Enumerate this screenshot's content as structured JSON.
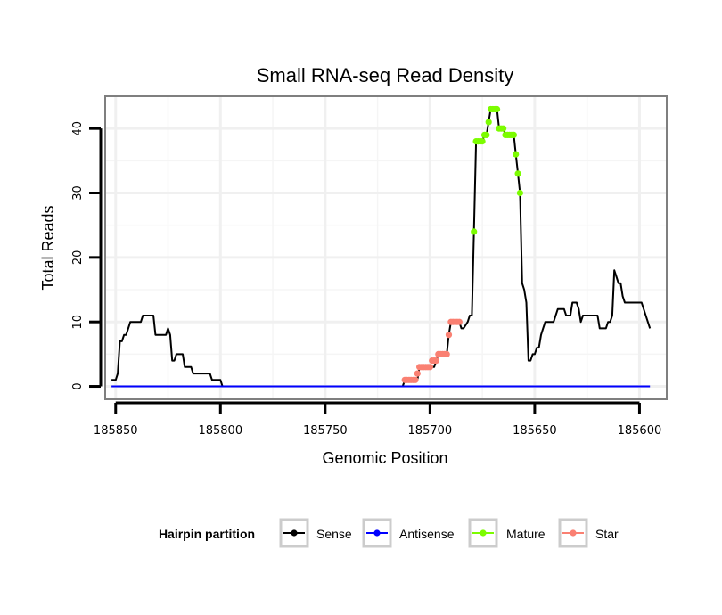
{
  "chart_data": {
    "type": "line",
    "title": "Small RNA-seq Read Density",
    "xlabel": "Genomic Position",
    "ylabel": "Total Reads",
    "xlim": [
      185855,
      185587
    ],
    "x_reversed": true,
    "ylim": [
      -2,
      45
    ],
    "x_ticks": [
      185850,
      185800,
      185750,
      185700,
      185650,
      185600
    ],
    "y_ticks": [
      0,
      10,
      20,
      30,
      40
    ],
    "grid": true,
    "legend": {
      "title": "Hairpin partition",
      "position": "bottom",
      "items": [
        {
          "label": "Sense",
          "color": "#000000"
        },
        {
          "label": "Antisense",
          "color": "#0000ff"
        },
        {
          "label": "Mature",
          "color": "#7cfc00"
        },
        {
          "label": "Star",
          "color": "#fa8072"
        }
      ]
    },
    "series": [
      {
        "name": "Sense",
        "color": "#000000",
        "style": "line",
        "points": [
          [
            185852,
            1
          ],
          [
            185850,
            1
          ],
          [
            185849,
            2
          ],
          [
            185848,
            7
          ],
          [
            185847,
            7
          ],
          [
            185846,
            8
          ],
          [
            185845,
            8
          ],
          [
            185844,
            9
          ],
          [
            185843,
            10
          ],
          [
            185840,
            10
          ],
          [
            185838,
            10
          ],
          [
            185837,
            11
          ],
          [
            185835,
            11
          ],
          [
            185832,
            11
          ],
          [
            185831,
            8
          ],
          [
            185826,
            8
          ],
          [
            185825,
            9
          ],
          [
            185824,
            8
          ],
          [
            185823,
            4
          ],
          [
            185822,
            4
          ],
          [
            185821,
            5
          ],
          [
            185818,
            5
          ],
          [
            185817,
            3
          ],
          [
            185815,
            3
          ],
          [
            185814,
            3
          ],
          [
            185813,
            2
          ],
          [
            185808,
            2
          ],
          [
            185805,
            2
          ],
          [
            185804,
            1
          ],
          [
            185800,
            1
          ],
          [
            185799,
            0
          ],
          [
            185790,
            0
          ],
          [
            185760,
            0
          ],
          [
            185740,
            0
          ],
          [
            185720,
            0
          ],
          [
            185713,
            0
          ],
          [
            185712,
            1
          ],
          [
            185706,
            1
          ],
          [
            185705,
            3
          ],
          [
            185698,
            3
          ],
          [
            185697,
            4
          ],
          [
            185696,
            5
          ],
          [
            185692,
            5
          ],
          [
            185691,
            8
          ],
          [
            185690,
            10
          ],
          [
            185686,
            10
          ],
          [
            185685,
            9
          ],
          [
            185684,
            9
          ],
          [
            185682,
            10
          ],
          [
            185681,
            11
          ],
          [
            185680,
            11
          ],
          [
            185679,
            24
          ],
          [
            185678,
            38
          ],
          [
            185675,
            38
          ],
          [
            185674,
            39
          ],
          [
            185673,
            39
          ],
          [
            185672,
            41
          ],
          [
            185671,
            43
          ],
          [
            185668,
            43
          ],
          [
            185667,
            40
          ],
          [
            185665,
            40
          ],
          [
            185664,
            39
          ],
          [
            185660,
            39
          ],
          [
            185659,
            36
          ],
          [
            185658,
            33
          ],
          [
            185657,
            30
          ],
          [
            185656,
            16
          ],
          [
            185655,
            15
          ],
          [
            185654,
            13
          ],
          [
            185653,
            4
          ],
          [
            185652,
            4
          ],
          [
            185651,
            5
          ],
          [
            185650,
            5
          ],
          [
            185649,
            6
          ],
          [
            185648,
            6
          ],
          [
            185647,
            8
          ],
          [
            185646,
            9
          ],
          [
            185645,
            10
          ],
          [
            185644,
            10
          ],
          [
            185641,
            10
          ],
          [
            185640,
            11
          ],
          [
            185639,
            12
          ],
          [
            185636,
            12
          ],
          [
            185635,
            11
          ],
          [
            185633,
            11
          ],
          [
            185632,
            13
          ],
          [
            185630,
            13
          ],
          [
            185629,
            12
          ],
          [
            185628,
            10
          ],
          [
            185627,
            11
          ],
          [
            185625,
            11
          ],
          [
            185624,
            11
          ],
          [
            185623,
            11
          ],
          [
            185620,
            11
          ],
          [
            185619,
            9
          ],
          [
            185616,
            9
          ],
          [
            185615,
            10
          ],
          [
            185614,
            10
          ],
          [
            185613,
            11
          ],
          [
            185612,
            18
          ],
          [
            185611,
            17
          ],
          [
            185610,
            16
          ],
          [
            185609,
            16
          ],
          [
            185608,
            14
          ],
          [
            185607,
            13
          ],
          [
            185600,
            13
          ],
          [
            185599,
            13
          ],
          [
            185597,
            11
          ],
          [
            185595,
            9
          ]
        ]
      },
      {
        "name": "Antisense",
        "color": "#0000ff",
        "style": "line",
        "points": [
          [
            185852,
            0
          ],
          [
            185595,
            0
          ]
        ]
      },
      {
        "name": "Mature",
        "color": "#7cfc00",
        "style": "points",
        "points": [
          [
            185679,
            24
          ],
          [
            185678,
            38
          ],
          [
            185677,
            38
          ],
          [
            185676,
            38
          ],
          [
            185675,
            38
          ],
          [
            185674,
            39
          ],
          [
            185673,
            39
          ],
          [
            185672,
            41
          ],
          [
            185671,
            43
          ],
          [
            185670,
            43
          ],
          [
            185669,
            43
          ],
          [
            185668,
            43
          ],
          [
            185667,
            40
          ],
          [
            185666,
            40
          ],
          [
            185665,
            40
          ],
          [
            185664,
            39
          ],
          [
            185663,
            39
          ],
          [
            185662,
            39
          ],
          [
            185661,
            39
          ],
          [
            185660,
            39
          ],
          [
            185659,
            36
          ],
          [
            185658,
            33
          ],
          [
            185657,
            30
          ]
        ]
      },
      {
        "name": "Star",
        "color": "#fa8072",
        "style": "points",
        "points": [
          [
            185712,
            1
          ],
          [
            185711,
            1
          ],
          [
            185710,
            1
          ],
          [
            185709,
            1
          ],
          [
            185708,
            1
          ],
          [
            185707,
            1
          ],
          [
            185706,
            2
          ],
          [
            185705,
            3
          ],
          [
            185704,
            3
          ],
          [
            185703,
            3
          ],
          [
            185702,
            3
          ],
          [
            185701,
            3
          ],
          [
            185700,
            3
          ],
          [
            185699,
            4
          ],
          [
            185698,
            4
          ],
          [
            185697,
            4
          ],
          [
            185696,
            5
          ],
          [
            185695,
            5
          ],
          [
            185694,
            5
          ],
          [
            185693,
            5
          ],
          [
            185692,
            5
          ],
          [
            185691,
            8
          ],
          [
            185690,
            10
          ],
          [
            185689,
            10
          ],
          [
            185688,
            10
          ],
          [
            185687,
            10
          ],
          [
            185686,
            10
          ]
        ]
      }
    ]
  }
}
